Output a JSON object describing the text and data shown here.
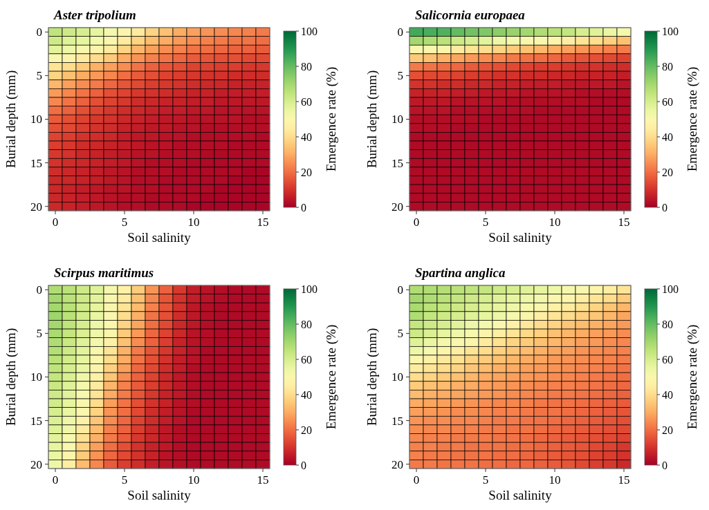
{
  "chart_data": [
    {
      "type": "heatmap",
      "title": "Aster tripolium",
      "xlabel": "Soil salinity",
      "ylabel": "Burial depth (mm)",
      "clabel": "Emergence rate (%)",
      "clim": [
        0,
        100
      ],
      "cticks": [
        0,
        20,
        40,
        60,
        80,
        100
      ],
      "categories": [
        "0",
        null,
        null,
        null,
        null,
        "5",
        null,
        null,
        null,
        null,
        "10",
        null,
        null,
        null,
        null,
        "15"
      ],
      "y_categories": [
        "0",
        null,
        null,
        null,
        null,
        "5",
        null,
        null,
        null,
        null,
        "10",
        null,
        null,
        null,
        null,
        "15",
        null,
        null,
        null,
        null,
        "20"
      ],
      "cells": [
        [
          65,
          62,
          60,
          56,
          52,
          48,
          44,
          38,
          34,
          30,
          28,
          26,
          25,
          24,
          23,
          22
        ],
        [
          62,
          58,
          56,
          52,
          49,
          44,
          38,
          33,
          30,
          27,
          25,
          23,
          22,
          21,
          21,
          20
        ],
        [
          57,
          54,
          50,
          48,
          44,
          38,
          32,
          28,
          25,
          23,
          21,
          20,
          19,
          18,
          18,
          17
        ],
        [
          50,
          48,
          44,
          40,
          36,
          30,
          26,
          23,
          21,
          19,
          17,
          16,
          15,
          15,
          14,
          14
        ],
        [
          42,
          40,
          36,
          31,
          28,
          25,
          21,
          18,
          16,
          15,
          13,
          13,
          12,
          12,
          11,
          11
        ],
        [
          38,
          34,
          30,
          27,
          24,
          20,
          17,
          15,
          13,
          12,
          11,
          10,
          10,
          9,
          9,
          9
        ],
        [
          32,
          28,
          25,
          22,
          19,
          16,
          14,
          12,
          11,
          10,
          9,
          8,
          8,
          7,
          7,
          7
        ],
        [
          27,
          24,
          21,
          18,
          15,
          13,
          11,
          10,
          9,
          8,
          7,
          7,
          6,
          6,
          6,
          6
        ],
        [
          24,
          21,
          18,
          15,
          13,
          11,
          9,
          8,
          7,
          7,
          6,
          6,
          5,
          5,
          5,
          5
        ],
        [
          20,
          18,
          15,
          13,
          11,
          9,
          8,
          7,
          6,
          6,
          5,
          5,
          4,
          4,
          4,
          4
        ],
        [
          17,
          15,
          13,
          11,
          10,
          8,
          7,
          6,
          5,
          5,
          4,
          4,
          4,
          4,
          3,
          3
        ],
        [
          15,
          14,
          12,
          10,
          9,
          7,
          6,
          5,
          5,
          4,
          4,
          3,
          3,
          3,
          3,
          3
        ],
        [
          13,
          12,
          10,
          9,
          8,
          6,
          5,
          5,
          4,
          4,
          3,
          3,
          3,
          3,
          3,
          2
        ],
        [
          12,
          11,
          9,
          8,
          7,
          6,
          5,
          4,
          4,
          3,
          3,
          3,
          3,
          2,
          2,
          2
        ],
        [
          11,
          10,
          8,
          7,
          6,
          5,
          4,
          4,
          3,
          3,
          3,
          2,
          2,
          2,
          2,
          2
        ],
        [
          10,
          9,
          8,
          7,
          6,
          5,
          4,
          3,
          3,
          3,
          2,
          2,
          2,
          2,
          2,
          2
        ],
        [
          9,
          8,
          7,
          6,
          5,
          4,
          3,
          3,
          3,
          2,
          2,
          2,
          2,
          2,
          1,
          1
        ],
        [
          8,
          8,
          7,
          6,
          5,
          4,
          3,
          3,
          2,
          2,
          2,
          2,
          2,
          1,
          1,
          1
        ],
        [
          8,
          7,
          6,
          5,
          4,
          4,
          3,
          3,
          2,
          2,
          2,
          2,
          1,
          1,
          1,
          1
        ],
        [
          8,
          7,
          6,
          5,
          4,
          3,
          3,
          2,
          2,
          2,
          2,
          1,
          1,
          1,
          1,
          1
        ],
        [
          8,
          7,
          6,
          5,
          4,
          3,
          3,
          2,
          2,
          2,
          1,
          1,
          1,
          1,
          1,
          1
        ]
      ]
    },
    {
      "type": "heatmap",
      "title": "Salicornia europaea",
      "xlabel": "Soil salinity",
      "ylabel": "Burial depth (mm)",
      "clabel": "Emergence rate (%)",
      "clim": [
        0,
        100
      ],
      "cticks": [
        0,
        20,
        40,
        60,
        80,
        100
      ],
      "categories": [
        "0",
        null,
        null,
        null,
        null,
        "5",
        null,
        null,
        null,
        null,
        "10",
        null,
        null,
        null,
        null,
        "15"
      ],
      "y_categories": [
        "0",
        null,
        null,
        null,
        null,
        "5",
        null,
        null,
        null,
        null,
        "10",
        null,
        null,
        null,
        null,
        "15",
        null,
        null,
        null,
        null,
        "20"
      ],
      "cells": [
        [
          85,
          84,
          83,
          80,
          78,
          76,
          74,
          72,
          70,
          68,
          66,
          64,
          60,
          58,
          55,
          52
        ],
        [
          70,
          68,
          66,
          62,
          60,
          57,
          54,
          52,
          50,
          50,
          48,
          45,
          42,
          40,
          37,
          34
        ],
        [
          50,
          49,
          48,
          44,
          42,
          40,
          38,
          36,
          34,
          32,
          30,
          28,
          26,
          25,
          23,
          22
        ],
        [
          36,
          34,
          31,
          29,
          27,
          25,
          24,
          22,
          21,
          20,
          19,
          17,
          16,
          15,
          14,
          13
        ],
        [
          22,
          21,
          20,
          19,
          17,
          16,
          15,
          14,
          13,
          12,
          12,
          11,
          10,
          10,
          9,
          9
        ],
        [
          15,
          14,
          14,
          13,
          12,
          11,
          10,
          10,
          9,
          9,
          8,
          8,
          7,
          7,
          7,
          6
        ],
        [
          10,
          10,
          9,
          9,
          8,
          8,
          7,
          7,
          6,
          6,
          6,
          5,
          5,
          5,
          5,
          4
        ],
        [
          7,
          7,
          7,
          6,
          6,
          5,
          5,
          5,
          4,
          4,
          4,
          4,
          3,
          3,
          3,
          3
        ],
        [
          5,
          5,
          5,
          4,
          4,
          4,
          4,
          3,
          3,
          3,
          3,
          3,
          3,
          2,
          2,
          2
        ],
        [
          4,
          4,
          4,
          3,
          3,
          3,
          3,
          3,
          3,
          2,
          2,
          2,
          2,
          2,
          2,
          2
        ],
        [
          3,
          3,
          3,
          3,
          3,
          2,
          2,
          2,
          2,
          2,
          2,
          2,
          2,
          2,
          2,
          2
        ],
        [
          3,
          3,
          3,
          2,
          2,
          2,
          2,
          2,
          2,
          2,
          2,
          2,
          2,
          2,
          2,
          2
        ],
        [
          2,
          2,
          2,
          2,
          2,
          2,
          2,
          2,
          2,
          2,
          2,
          2,
          2,
          2,
          2,
          2
        ],
        [
          2,
          2,
          2,
          2,
          2,
          2,
          2,
          2,
          2,
          2,
          2,
          2,
          2,
          2,
          2,
          2
        ],
        [
          2,
          2,
          2,
          2,
          2,
          2,
          2,
          2,
          2,
          2,
          2,
          2,
          2,
          2,
          2,
          2
        ],
        [
          2,
          2,
          2,
          2,
          2,
          2,
          2,
          2,
          2,
          2,
          2,
          2,
          2,
          2,
          2,
          2
        ],
        [
          2,
          2,
          2,
          2,
          2,
          2,
          2,
          2,
          2,
          2,
          2,
          2,
          2,
          2,
          2,
          2
        ],
        [
          2,
          2,
          2,
          2,
          2,
          2,
          2,
          2,
          2,
          2,
          2,
          2,
          2,
          2,
          2,
          2
        ],
        [
          2,
          2,
          2,
          2,
          2,
          2,
          2,
          2,
          2,
          2,
          2,
          2,
          2,
          2,
          2,
          2
        ],
        [
          2,
          2,
          2,
          2,
          2,
          2,
          2,
          2,
          2,
          2,
          2,
          2,
          2,
          2,
          2,
          2
        ],
        [
          2,
          2,
          2,
          2,
          2,
          2,
          2,
          2,
          2,
          2,
          2,
          2,
          2,
          2,
          2,
          2
        ]
      ]
    },
    {
      "type": "heatmap",
      "title": "Scirpus maritimus",
      "xlabel": "Soil salinity",
      "ylabel": "Burial depth (mm)",
      "clabel": "Emergence rate (%)",
      "clim": [
        0,
        100
      ],
      "cticks": [
        0,
        20,
        40,
        60,
        80,
        100
      ],
      "categories": [
        "0",
        null,
        null,
        null,
        null,
        "5",
        null,
        null,
        null,
        null,
        "10",
        null,
        null,
        null,
        null,
        "15"
      ],
      "y_categories": [
        "0",
        null,
        null,
        null,
        null,
        "5",
        null,
        null,
        null,
        null,
        "10",
        null,
        null,
        null,
        null,
        "15",
        null,
        null,
        null,
        null,
        "20"
      ],
      "cells": [
        [
          68,
          66,
          62,
          58,
          52,
          46,
          36,
          26,
          18,
          11,
          6,
          4,
          3,
          2,
          2,
          2
        ],
        [
          70,
          66,
          62,
          57,
          50,
          44,
          34,
          24,
          16,
          10,
          6,
          4,
          3,
          2,
          2,
          2
        ],
        [
          70,
          66,
          61,
          56,
          50,
          42,
          33,
          23,
          16,
          10,
          5,
          3,
          2,
          2,
          2,
          2
        ],
        [
          71,
          66,
          61,
          55,
          50,
          40,
          31,
          21,
          15,
          9,
          5,
          3,
          2,
          2,
          2,
          2
        ],
        [
          70,
          65,
          60,
          54,
          49,
          38,
          29,
          20,
          14,
          8,
          5,
          3,
          2,
          2,
          2,
          2
        ],
        [
          69,
          64,
          59,
          53,
          48,
          36,
          27,
          19,
          13,
          8,
          4,
          3,
          2,
          2,
          2,
          2
        ],
        [
          68,
          63,
          58,
          52,
          46,
          34,
          25,
          18,
          12,
          7,
          4,
          3,
          2,
          2,
          2,
          2
        ],
        [
          67,
          62,
          57,
          50,
          42,
          31,
          22,
          16,
          11,
          7,
          4,
          2,
          2,
          2,
          2,
          2
        ],
        [
          66,
          61,
          56,
          49,
          40,
          30,
          21,
          15,
          10,
          6,
          4,
          2,
          2,
          2,
          2,
          2
        ],
        [
          65,
          60,
          55,
          48,
          37,
          28,
          19,
          14,
          9,
          6,
          3,
          2,
          2,
          2,
          2,
          2
        ],
        [
          64,
          59,
          53,
          46,
          35,
          25,
          18,
          13,
          8,
          5,
          3,
          2,
          2,
          2,
          2,
          2
        ],
        [
          63,
          58,
          52,
          44,
          32,
          23,
          17,
          12,
          8,
          5,
          3,
          2,
          2,
          2,
          2,
          2
        ],
        [
          62,
          57,
          51,
          42,
          30,
          22,
          16,
          11,
          7,
          5,
          3,
          2,
          2,
          2,
          2,
          2
        ],
        [
          61,
          56,
          50,
          40,
          28,
          21,
          15,
          10,
          7,
          4,
          3,
          2,
          2,
          2,
          2,
          2
        ],
        [
          60,
          55,
          49,
          38,
          26,
          20,
          14,
          9,
          6,
          4,
          2,
          2,
          2,
          2,
          2,
          2
        ],
        [
          59,
          54,
          46,
          35,
          25,
          19,
          13,
          9,
          6,
          4,
          2,
          2,
          2,
          2,
          2,
          2
        ],
        [
          58,
          53,
          44,
          33,
          23,
          18,
          12,
          8,
          5,
          3,
          2,
          2,
          2,
          2,
          2,
          2
        ],
        [
          57,
          51,
          41,
          31,
          22,
          17,
          11,
          8,
          5,
          3,
          2,
          2,
          2,
          2,
          2,
          2
        ],
        [
          56,
          50,
          38,
          28,
          20,
          15,
          10,
          7,
          5,
          3,
          2,
          2,
          2,
          2,
          2,
          2
        ],
        [
          55,
          48,
          36,
          26,
          19,
          14,
          10,
          7,
          4,
          3,
          2,
          2,
          2,
          2,
          2,
          2
        ],
        [
          54,
          45,
          33,
          24,
          17,
          12,
          9,
          6,
          4,
          3,
          2,
          2,
          2,
          2,
          2,
          2
        ]
      ]
    },
    {
      "type": "heatmap",
      "title": "Spartina anglica",
      "xlabel": "Soil salinity",
      "ylabel": "Burial depth (mm)",
      "clabel": "Emergence rate (%)",
      "clim": [
        0,
        100
      ],
      "cticks": [
        0,
        20,
        40,
        60,
        80,
        100
      ],
      "categories": [
        "0",
        null,
        null,
        null,
        null,
        "5",
        null,
        null,
        null,
        null,
        "10",
        null,
        null,
        null,
        null,
        "15"
      ],
      "y_categories": [
        "0",
        null,
        null,
        null,
        null,
        "5",
        null,
        null,
        null,
        null,
        "10",
        null,
        null,
        null,
        null,
        "15",
        null,
        null,
        null,
        null,
        "20"
      ],
      "cells": [
        [
          68,
          68,
          67,
          66,
          65,
          64,
          62,
          60,
          58,
          56,
          54,
          52,
          50,
          48,
          45,
          42
        ],
        [
          70,
          68,
          66,
          64,
          62,
          60,
          58,
          56,
          54,
          52,
          50,
          48,
          45,
          42,
          40,
          36
        ],
        [
          69,
          66,
          64,
          62,
          60,
          58,
          56,
          54,
          51,
          49,
          46,
          44,
          41,
          38,
          35,
          32
        ],
        [
          68,
          64,
          62,
          60,
          58,
          56,
          54,
          51,
          48,
          45,
          42,
          40,
          37,
          35,
          32,
          29
        ],
        [
          64,
          62,
          60,
          57,
          54,
          52,
          50,
          46,
          43,
          40,
          38,
          35,
          33,
          31,
          29,
          27
        ],
        [
          62,
          59,
          56,
          53,
          51,
          48,
          45,
          42,
          39,
          37,
          34,
          32,
          30,
          28,
          27,
          25
        ],
        [
          58,
          55,
          52,
          50,
          48,
          44,
          41,
          38,
          36,
          34,
          32,
          30,
          28,
          27,
          25,
          24
        ],
        [
          54,
          51,
          48,
          45,
          42,
          40,
          37,
          35,
          33,
          31,
          29,
          28,
          26,
          25,
          24,
          23
        ],
        [
          49,
          46,
          43,
          41,
          38,
          36,
          34,
          32,
          30,
          29,
          27,
          26,
          25,
          24,
          23,
          22
        ],
        [
          44,
          42,
          40,
          38,
          35,
          33,
          31,
          30,
          28,
          27,
          26,
          25,
          24,
          23,
          22,
          21
        ],
        [
          40,
          38,
          36,
          34,
          32,
          30,
          29,
          28,
          27,
          26,
          25,
          24,
          23,
          22,
          21,
          20
        ],
        [
          36,
          34,
          33,
          31,
          30,
          28,
          27,
          26,
          25,
          24,
          23,
          23,
          22,
          21,
          20,
          19
        ],
        [
          33,
          31,
          30,
          29,
          28,
          27,
          26,
          25,
          24,
          23,
          22,
          22,
          21,
          20,
          19,
          18
        ],
        [
          30,
          29,
          28,
          27,
          26,
          25,
          24,
          24,
          23,
          22,
          21,
          21,
          20,
          19,
          18,
          17
        ],
        [
          28,
          27,
          26,
          25,
          25,
          24,
          23,
          23,
          22,
          21,
          21,
          20,
          19,
          18,
          17,
          16
        ],
        [
          26,
          25,
          25,
          24,
          24,
          23,
          22,
          22,
          21,
          21,
          20,
          19,
          18,
          17,
          16,
          15
        ],
        [
          25,
          24,
          24,
          23,
          23,
          22,
          22,
          21,
          21,
          20,
          19,
          18,
          17,
          16,
          15,
          14
        ],
        [
          24,
          23,
          23,
          22,
          22,
          22,
          21,
          21,
          20,
          19,
          18,
          17,
          16,
          15,
          14,
          13
        ],
        [
          23,
          23,
          22,
          22,
          21,
          21,
          21,
          20,
          20,
          19,
          18,
          17,
          16,
          14,
          13,
          11
        ],
        [
          23,
          22,
          22,
          21,
          21,
          21,
          20,
          20,
          19,
          18,
          17,
          16,
          15,
          13,
          12,
          10
        ],
        [
          22,
          22,
          21,
          21,
          21,
          20,
          20,
          19,
          19,
          18,
          17,
          16,
          14,
          12,
          11,
          8
        ]
      ]
    }
  ]
}
